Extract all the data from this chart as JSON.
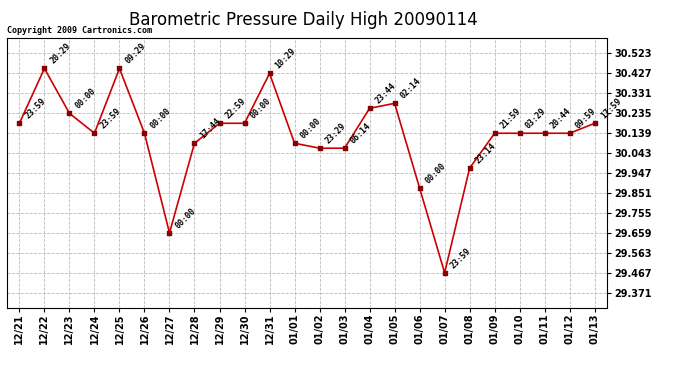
{
  "title": "Barometric Pressure Daily High 20090114",
  "copyright": "Copyright 2009 Cartronics.com",
  "x_labels": [
    "12/21",
    "12/22",
    "12/23",
    "12/24",
    "12/25",
    "12/26",
    "12/27",
    "12/28",
    "12/29",
    "12/30",
    "12/31",
    "01/01",
    "01/02",
    "01/03",
    "01/04",
    "01/05",
    "01/06",
    "01/07",
    "01/08",
    "01/09",
    "01/10",
    "01/11",
    "01/12",
    "01/13"
  ],
  "y_values": [
    30.187,
    30.451,
    30.235,
    30.139,
    30.451,
    30.139,
    29.659,
    30.091,
    30.187,
    30.187,
    30.427,
    30.091,
    30.067,
    30.067,
    30.259,
    30.283,
    29.875,
    29.467,
    29.971,
    30.139,
    30.139,
    30.139,
    30.139,
    30.187
  ],
  "point_labels": [
    "23:59",
    "20:29",
    "00:00",
    "23:59",
    "09:29",
    "00:00",
    "00:00",
    "17:44",
    "22:59",
    "00:00",
    "10:29",
    "00:00",
    "23:29",
    "06:14",
    "23:44",
    "02:14",
    "00:00",
    "23:59",
    "23:14",
    "21:59",
    "03:29",
    "20:44",
    "09:59",
    "17:59"
  ],
  "y_ticks": [
    29.371,
    29.467,
    29.563,
    29.659,
    29.755,
    29.851,
    29.947,
    30.043,
    30.139,
    30.235,
    30.331,
    30.427,
    30.523
  ],
  "ylim": [
    29.3,
    30.6
  ],
  "xlim": [
    -0.5,
    23.5
  ],
  "line_color": "#cc0000",
  "marker_color": "#880000",
  "bg_color": "#ffffff",
  "plot_bg_color": "#ffffff",
  "grid_color": "#bbbbbb",
  "title_fontsize": 12,
  "label_fontsize": 6,
  "tick_fontsize": 7,
  "copyright_fontsize": 6
}
